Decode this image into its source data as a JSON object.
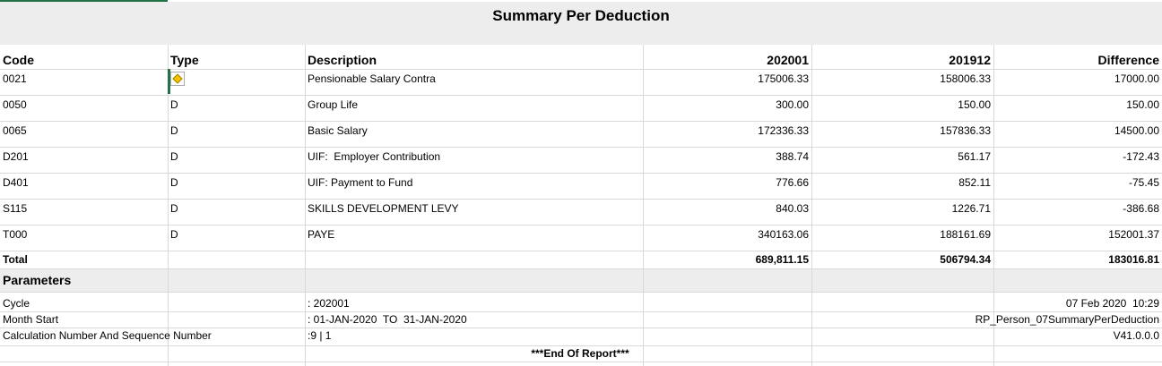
{
  "title": "Summary Per Deduction",
  "table": {
    "headers": [
      "Code",
      "Type",
      "Description",
      "202001",
      "201912",
      "Difference"
    ],
    "rows": [
      {
        "code": "0021",
        "description": "Pensionable Salary Contra",
        "current": "175006.33",
        "previous": "158006.33",
        "difference": "17000.00"
      },
      {
        "code": "0050",
        "type": "D",
        "description": "Group Life",
        "current": "300.00",
        "previous": "150.00",
        "difference": "150.00"
      },
      {
        "code": "0065",
        "type": "D",
        "description": "Basic Salary",
        "current": "172336.33",
        "previous": "157836.33",
        "difference": "14500.00"
      },
      {
        "code": "D201",
        "type": "D",
        "description": "UIF:  Employer Contribution",
        "current": "388.74",
        "previous": "561.17",
        "difference": "-172.43"
      },
      {
        "code": "D401",
        "type": "D",
        "description": "UIF: Payment to Fund",
        "current": "776.66",
        "previous": "852.11",
        "difference": "-75.45"
      },
      {
        "code": "S115",
        "type": "D",
        "description": "SKILLS DEVELOPMENT LEVY",
        "current": "840.03",
        "previous": "1226.71",
        "difference": "-386.68"
      },
      {
        "code": "T000",
        "type": "D",
        "description": "PAYE",
        "current": "340163.06",
        "previous": "188161.69",
        "difference": "152001.37"
      }
    ],
    "total": {
      "label": "Total",
      "current": "689,811.15",
      "previous": "506794.34",
      "difference": "183016.81"
    }
  },
  "parameters": {
    "title": "Parameters",
    "rows": [
      {
        "label": "Cycle",
        "value": ": 202001",
        "info": "07 Feb 2020  10:29"
      },
      {
        "label": "Month Start",
        "value": ": 01-JAN-2020  TO  31-JAN-2020",
        "info": "RP_Person_07SummaryPerDeduction"
      },
      {
        "label": "Calculation Number And Sequence Number",
        "value": ":9 | 1",
        "info": "V41.0.0.0"
      }
    ]
  },
  "footer": "***End Of Report***"
}
